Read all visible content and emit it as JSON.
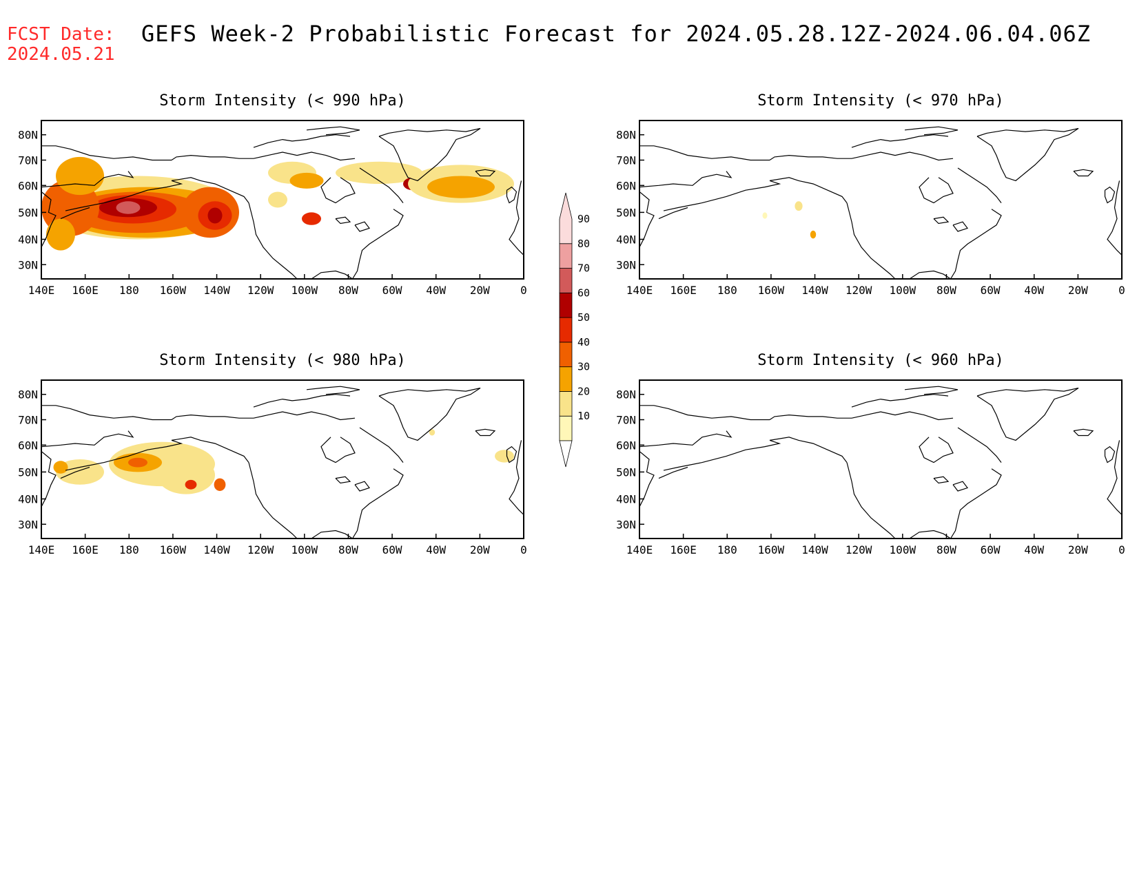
{
  "header": {
    "fcst_label": "FCST Date:",
    "fcst_date": "2024.05.21",
    "title": "GEFS Week-2 Probabilistic Forecast for 2024.05.28.12Z-2024.06.04.06Z"
  },
  "axes": {
    "lon_ticks": [
      "140E",
      "160E",
      "180",
      "160W",
      "140W",
      "120W",
      "100W",
      "80W",
      "60W",
      "40W",
      "20W",
      "0"
    ],
    "lat_ticks": [
      "80N",
      "70N",
      "60N",
      "50N",
      "40N",
      "30N"
    ]
  },
  "panels": [
    {
      "id": "p990",
      "title": "Storm Intensity (< 990 hPa)"
    },
    {
      "id": "p970",
      "title": "Storm Intensity (< 970 hPa)"
    },
    {
      "id": "p980",
      "title": "Storm Intensity (< 980 hPa)"
    },
    {
      "id": "p960",
      "title": "Storm Intensity (< 960 hPa)"
    }
  ],
  "colorbar": {
    "levels": [
      "10",
      "20",
      "30",
      "40",
      "50",
      "60",
      "70",
      "80",
      "90"
    ],
    "colors": [
      "#fff7b8",
      "#f9e38a",
      "#f5a300",
      "#f06000",
      "#e62a00",
      "#b00000",
      "#d25a5a",
      "#eea0a0",
      "#fbdcdc"
    ]
  }
}
